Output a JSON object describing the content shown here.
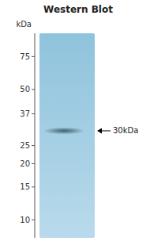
{
  "chart_data": {
    "type": "blot",
    "title": "Western Blot",
    "y_label": "kDa",
    "values": [
      30
    ],
    "value_labels": [
      "30kDa"
    ],
    "data_labels": true,
    "ylim": [
      8,
      100
    ],
    "yticks": [
      75,
      50,
      37,
      25,
      20,
      15,
      10
    ],
    "log": "y",
    "tick_labels": "y"
  }
}
